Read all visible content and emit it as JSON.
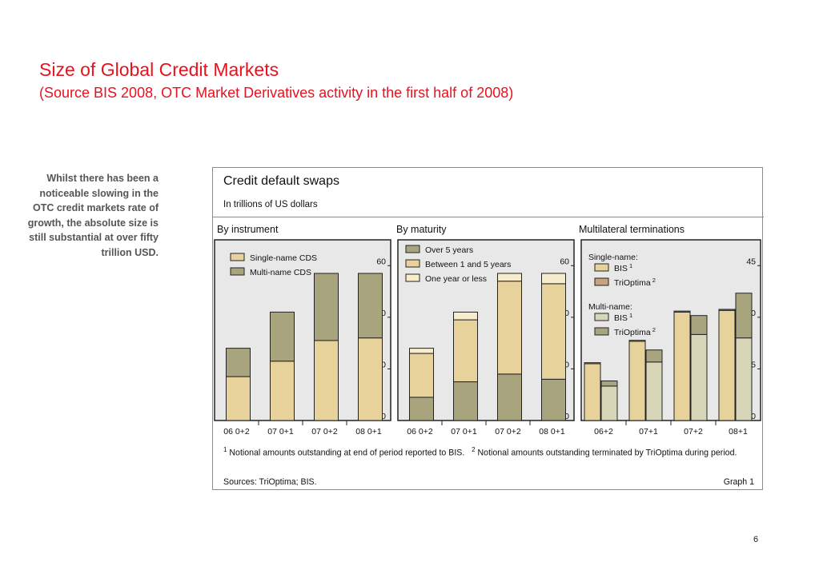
{
  "slide": {
    "title": "Size of Global Credit Markets",
    "subtitle": "(Source BIS 2008, OTC Market Derivatives activity in the first half of 2008)",
    "side_text": "Whilst there has been a noticeable slowing in  the OTC credit markets rate of growth, the absolute size is still substantial at over fifty trillion USD.",
    "page_number": "6"
  },
  "graph": {
    "title": "Credit default swaps",
    "units": "In trillions of US dollars",
    "footnote_1": "Notional amounts outstanding at end of period reported to BIS.",
    "footnote_2": "Notional amounts outstanding terminated by TriOptima during period.",
    "footnote_1_mark": "1",
    "footnote_2_mark": "2",
    "sources": "Sources: TriOptima; BIS.",
    "graph_number": "Graph 1"
  },
  "colors": {
    "single_name": "#e8d29b",
    "multi_name": "#a8a57e",
    "one_year": "#f7eccc",
    "bis_multi": "#d8d6b8",
    "trioptima_single": "#c9a27e",
    "plot_bg": "#e8e8e8",
    "outline": "#222222"
  },
  "chart_data": [
    {
      "type": "bar",
      "stacked": true,
      "title": "By instrument",
      "categories": [
        "06 0+2",
        "07 0+1",
        "07 0+2",
        "08 0+1"
      ],
      "series": [
        {
          "name": "Single-name CDS",
          "values": [
            17,
            23,
            31,
            32
          ],
          "color_key": "single_name"
        },
        {
          "name": "Multi-name CDS",
          "values": [
            11,
            19,
            26,
            25
          ],
          "color_key": "multi_name"
        }
      ],
      "ylim": [
        0,
        70
      ],
      "yticks": [
        0,
        20,
        40,
        60
      ],
      "legend": "top-left",
      "grid": false
    },
    {
      "type": "bar",
      "stacked": true,
      "title": "By maturity",
      "categories": [
        "06 0+2",
        "07 0+1",
        "07 0+2",
        "08 0+1"
      ],
      "series": [
        {
          "name": "Over 5 years",
          "values": [
            9,
            15,
            18,
            16
          ],
          "color_key": "multi_name"
        },
        {
          "name": "Between 1 and 5 years",
          "values": [
            17,
            24,
            36,
            37
          ],
          "color_key": "single_name"
        },
        {
          "name": "One year or less",
          "values": [
            2,
            3,
            3,
            4
          ],
          "color_key": "one_year"
        }
      ],
      "ylim": [
        0,
        70
      ],
      "yticks": [
        0,
        20,
        40,
        60
      ],
      "legend": "top-left",
      "grid": false
    },
    {
      "type": "bar",
      "grouped": true,
      "title": "Multilateral terminations",
      "categories": [
        "06+2",
        "07+1",
        "07+2",
        "08+1"
      ],
      "groups": [
        {
          "name": "Single-name:",
          "bars": [
            {
              "name": "BIS",
              "mark": "1",
              "values": [
                16.5,
                23,
                31.5,
                32
              ],
              "color_key": "single_name"
            },
            {
              "name": "TriOptima",
              "mark": "2",
              "values": [
                0.3,
                0.3,
                0.3,
                0.3
              ],
              "color_key": "trioptima_single"
            }
          ]
        },
        {
          "name": "Multi-name:",
          "bars": [
            {
              "name": "BIS",
              "mark": "1",
              "values": [
                10,
                17,
                25,
                24
              ],
              "color_key": "bis_multi"
            },
            {
              "name": "TriOptima",
              "mark": "2",
              "values": [
                1.5,
                3.5,
                5.5,
                13
              ],
              "color_key": "multi_name"
            }
          ]
        }
      ],
      "ylim": [
        0,
        52.5
      ],
      "yticks": [
        0,
        15,
        30,
        45
      ],
      "legend": "top-left",
      "grid": false
    }
  ]
}
